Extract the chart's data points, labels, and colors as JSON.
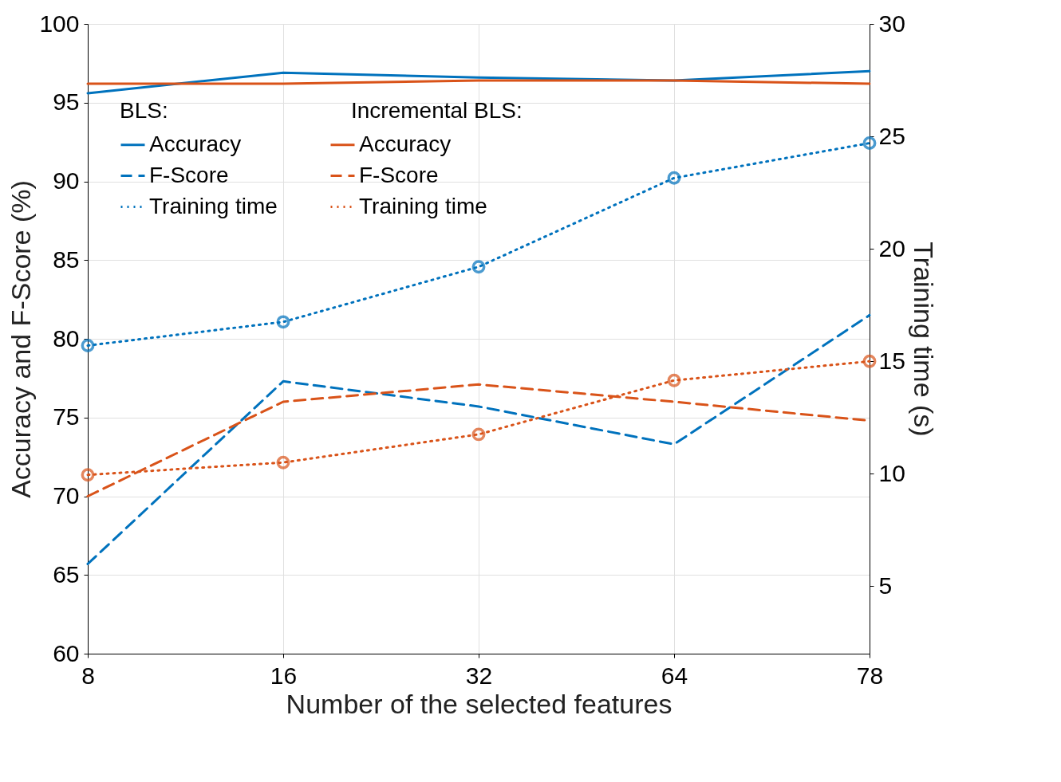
{
  "chart_data": {
    "type": "line",
    "categories": [
      "8",
      "16",
      "32",
      "64",
      "78"
    ],
    "xlabel": "Number of the selected features",
    "ylabel": "Accuracy and F-Score (%)",
    "y2label": "Training time (s)",
    "ylim": [
      60,
      100
    ],
    "yticks": [
      60,
      65,
      70,
      75,
      80,
      85,
      90,
      95,
      100
    ],
    "y2lim": [
      2,
      30
    ],
    "y2ticks": [
      5,
      10,
      15,
      20,
      25,
      30
    ],
    "grid": true,
    "legend": "top left",
    "annotations": [
      "BLS:",
      "Incremental BLS:"
    ],
    "series": [
      {
        "name": "Accuracy",
        "color": "#0072bd",
        "line_style": "solid",
        "values": [
          95.6,
          96.9,
          96.6,
          96.4,
          97.0
        ]
      },
      {
        "name": "F-Score",
        "color": "#0072bd",
        "line_style": "dashed",
        "values": [
          65.7,
          77.3,
          75.7,
          73.3,
          81.5
        ]
      },
      {
        "name": "Training time",
        "color": "#0072bd",
        "line_style": "dotted",
        "marker": "circle",
        "axis": "y2",
        "values": [
          15.7,
          16.75,
          19.2,
          23.15,
          24.7
        ]
      },
      {
        "name": "Accuracy",
        "color": "#d95319",
        "line_style": "solid",
        "values": [
          96.2,
          96.2,
          96.4,
          96.4,
          96.2
        ]
      },
      {
        "name": "F-Score",
        "color": "#d95319",
        "line_style": "dashed",
        "values": [
          70.0,
          76.0,
          77.1,
          76.0,
          74.8
        ]
      },
      {
        "name": "Training time",
        "color": "#d95319",
        "line_style": "dotted",
        "marker": "circle",
        "axis": "y2",
        "values": [
          9.95,
          10.5,
          11.75,
          14.15,
          15.0
        ]
      }
    ]
  }
}
